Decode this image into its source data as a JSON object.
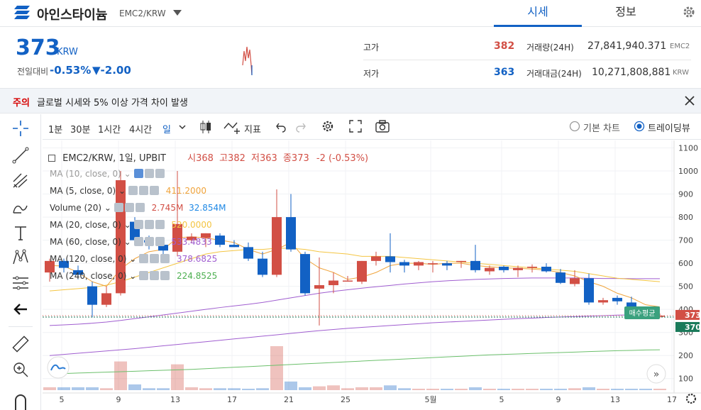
{
  "header": {
    "coin_name": "아인스타이늄",
    "pair": "EMC2/KRW",
    "tabs": [
      "시세",
      "정보"
    ]
  },
  "price": {
    "current": "373",
    "unit": "KRW",
    "change_label": "전일대비",
    "change_pct": "-0.53%",
    "change_abs": "▼-2.00"
  },
  "stats": {
    "high_label": "고가",
    "high": "382",
    "low_label": "저가",
    "low": "363",
    "volume_label": "거래량(24H)",
    "volume": "27,841,940.371",
    "volume_unit": "EMC2",
    "amount_label": "거래대금(24H)",
    "amount": "10,271,808,881",
    "amount_unit": "KRW"
  },
  "notice": {
    "tag": "주의",
    "text": "글로벌 시세와 5% 이상 가격 차이 발생"
  },
  "toolbar": {
    "intervals": [
      "1분",
      "30분",
      "1시간",
      "4시간",
      "일"
    ],
    "indicator_label": "지표",
    "basic_chart": "기본 차트",
    "tradingview": "트레이딩뷰"
  },
  "legend": {
    "title": "EMC2/KRW, 1일, UPBIT",
    "open_label": "시",
    "open": "368",
    "high_label": "고",
    "high": "382",
    "low_label": "저",
    "low": "363",
    "close_label": "종",
    "close": "373",
    "change": "-2 (-0.53%)",
    "indicators": [
      {
        "name": "MA (10, close, 0)",
        "value": ""
      },
      {
        "name": "MA (5, close, 0)",
        "value": "411.2000"
      },
      {
        "name": "Volume (20)",
        "value": "2.745M",
        "value2": "32.854M"
      },
      {
        "name": "MA (20, close, 0)",
        "value": "520.0000"
      },
      {
        "name": "MA (60, close, 0)",
        "value": "533.4833"
      },
      {
        "name": "MA (120, close, 0)",
        "value": "378.6825"
      },
      {
        "name": "MA (240, close, 0)",
        "value": "224.8525"
      }
    ],
    "avg_buy_label": "매수평균"
  },
  "colors": {
    "up": "#d24f45",
    "down": "#1261c4",
    "ma5": "#f0a43c",
    "ma20": "#f4c542",
    "ma60": "#a05ed0",
    "ma240": "#6cc06c"
  },
  "chart_data": {
    "type": "candlestick",
    "x_ticks": [
      "5",
      "9",
      "13",
      "17",
      "21",
      "25",
      "5월",
      "5",
      "9",
      "13",
      "17"
    ],
    "y_ticks": [
      100,
      200,
      300,
      400,
      500,
      600,
      700,
      800,
      900,
      1000,
      1100
    ],
    "ylim": [
      50,
      1120
    ],
    "price_labels": [
      "373",
      "370"
    ],
    "candles": [
      {
        "o": 560,
        "h": 620,
        "l": 520,
        "c": 610
      },
      {
        "o": 610,
        "h": 620,
        "l": 560,
        "c": 580
      },
      {
        "o": 570,
        "h": 590,
        "l": 530,
        "c": 550
      },
      {
        "o": 500,
        "h": 520,
        "l": 365,
        "c": 420
      },
      {
        "o": 420,
        "h": 500,
        "l": 410,
        "c": 470
      },
      {
        "o": 470,
        "h": 1000,
        "l": 460,
        "c": 960
      },
      {
        "o": 780,
        "h": 800,
        "l": 690,
        "c": 700
      },
      {
        "o": 700,
        "h": 720,
        "l": 660,
        "c": 690
      },
      {
        "o": 680,
        "h": 700,
        "l": 640,
        "c": 655
      },
      {
        "o": 650,
        "h": 1000,
        "l": 630,
        "c": 770
      },
      {
        "o": 700,
        "h": 730,
        "l": 690,
        "c": 715
      },
      {
        "o": 710,
        "h": 730,
        "l": 670,
        "c": 730
      },
      {
        "o": 720,
        "h": 730,
        "l": 670,
        "c": 680
      },
      {
        "o": 680,
        "h": 700,
        "l": 670,
        "c": 670
      },
      {
        "o": 670,
        "h": 690,
        "l": 610,
        "c": 620
      },
      {
        "o": 620,
        "h": 650,
        "l": 540,
        "c": 550
      },
      {
        "o": 550,
        "h": 920,
        "l": 540,
        "c": 800
      },
      {
        "o": 800,
        "h": 900,
        "l": 650,
        "c": 660
      },
      {
        "o": 640,
        "h": 650,
        "l": 460,
        "c": 470
      },
      {
        "o": 490,
        "h": 625,
        "l": 330,
        "c": 505
      },
      {
        "o": 505,
        "h": 560,
        "l": 470,
        "c": 525
      },
      {
        "o": 525,
        "h": 545,
        "l": 520,
        "c": 525
      },
      {
        "o": 520,
        "h": 610,
        "l": 510,
        "c": 610
      },
      {
        "o": 610,
        "h": 650,
        "l": 590,
        "c": 630
      },
      {
        "o": 630,
        "h": 730,
        "l": 560,
        "c": 605
      },
      {
        "o": 605,
        "h": 615,
        "l": 560,
        "c": 590
      },
      {
        "o": 590,
        "h": 610,
        "l": 570,
        "c": 605
      },
      {
        "o": 600,
        "h": 610,
        "l": 560,
        "c": 600
      },
      {
        "o": 600,
        "h": 610,
        "l": 570,
        "c": 590
      },
      {
        "o": 610,
        "h": 610,
        "l": 580,
        "c": 610
      },
      {
        "o": 610,
        "h": 680,
        "l": 560,
        "c": 570
      },
      {
        "o": 565,
        "h": 590,
        "l": 550,
        "c": 580
      },
      {
        "o": 585,
        "h": 590,
        "l": 560,
        "c": 570
      },
      {
        "o": 570,
        "h": 590,
        "l": 540,
        "c": 580
      },
      {
        "o": 580,
        "h": 595,
        "l": 560,
        "c": 585
      },
      {
        "o": 585,
        "h": 600,
        "l": 560,
        "c": 565
      },
      {
        "o": 560,
        "h": 575,
        "l": 510,
        "c": 515
      },
      {
        "o": 510,
        "h": 570,
        "l": 500,
        "c": 535
      },
      {
        "o": 535,
        "h": 555,
        "l": 420,
        "c": 430
      },
      {
        "o": 430,
        "h": 450,
        "l": 420,
        "c": 440
      },
      {
        "o": 450,
        "h": 460,
        "l": 420,
        "c": 435
      },
      {
        "o": 430,
        "h": 455,
        "l": 400,
        "c": 410
      },
      {
        "o": 405,
        "h": 410,
        "l": 370,
        "c": 370
      },
      {
        "o": 368,
        "h": 382,
        "l": 363,
        "c": 373
      }
    ],
    "volume": [
      0.3,
      0.3,
      0.3,
      0.3,
      0.2,
      3.0,
      0.6,
      0.2,
      0.2,
      2.7,
      0.3,
      0.2,
      0.2,
      0.2,
      0.1,
      0.2,
      4.6,
      0.9,
      0.3,
      0.4,
      0.5,
      0.2,
      0.3,
      0.3,
      0.5,
      0.2,
      0.1,
      0.1,
      0.1,
      0.1,
      0.3,
      0.1,
      0.1,
      0.1,
      0.1,
      0.1,
      0.1,
      0.2,
      0.3,
      0.1,
      0.1,
      0.1,
      0.1,
      0.1
    ],
    "ma5": [
      590,
      588,
      560,
      520,
      500,
      575,
      620,
      650,
      660,
      710,
      715,
      710,
      700,
      690,
      660,
      640,
      660,
      690,
      620,
      580,
      560,
      530,
      540,
      560,
      590,
      600,
      600,
      595,
      600,
      600,
      590,
      585,
      580,
      578,
      575,
      570,
      560,
      545,
      520,
      500,
      470,
      450,
      420,
      411
    ],
    "ma20": [
      480,
      485,
      490,
      495,
      505,
      520,
      540,
      560,
      580,
      600,
      620,
      640,
      650,
      655,
      660,
      660,
      665,
      665,
      660,
      650,
      645,
      640,
      630,
      630,
      630,
      625,
      620,
      615,
      610,
      605,
      600,
      595,
      590,
      585,
      580,
      575,
      570,
      565,
      555,
      545,
      535,
      530,
      525,
      520
    ],
    "ma60": [
      330,
      333,
      336,
      340,
      345,
      352,
      360,
      368,
      376,
      384,
      392,
      400,
      408,
      415,
      422,
      430,
      440,
      450,
      460,
      470,
      478,
      485,
      492,
      498,
      504,
      510,
      515,
      520,
      524,
      527,
      530,
      532,
      534,
      535,
      536,
      536,
      536,
      536,
      535,
      534,
      534,
      533,
      533,
      533
    ],
    "ma120": [
      200,
      205,
      210,
      215,
      220,
      225,
      230,
      236,
      242,
      248,
      254,
      260,
      266,
      272,
      278,
      284,
      290,
      296,
      302,
      308,
      313,
      318,
      322,
      326,
      330,
      334,
      338,
      342,
      345,
      348,
      351,
      354,
      357,
      360,
      362,
      365,
      367,
      369,
      371,
      373,
      375,
      376,
      377,
      378
    ],
    "ma240": [
      120,
      122,
      124,
      126,
      128,
      130,
      132,
      134,
      136,
      138,
      140,
      143,
      146,
      149,
      152,
      155,
      158,
      161,
      164,
      167,
      170,
      173,
      176,
      179,
      182,
      185,
      188,
      191,
      194,
      197,
      200,
      203,
      205,
      207,
      209,
      211,
      213,
      215,
      217,
      219,
      221,
      222,
      224,
      225
    ]
  }
}
